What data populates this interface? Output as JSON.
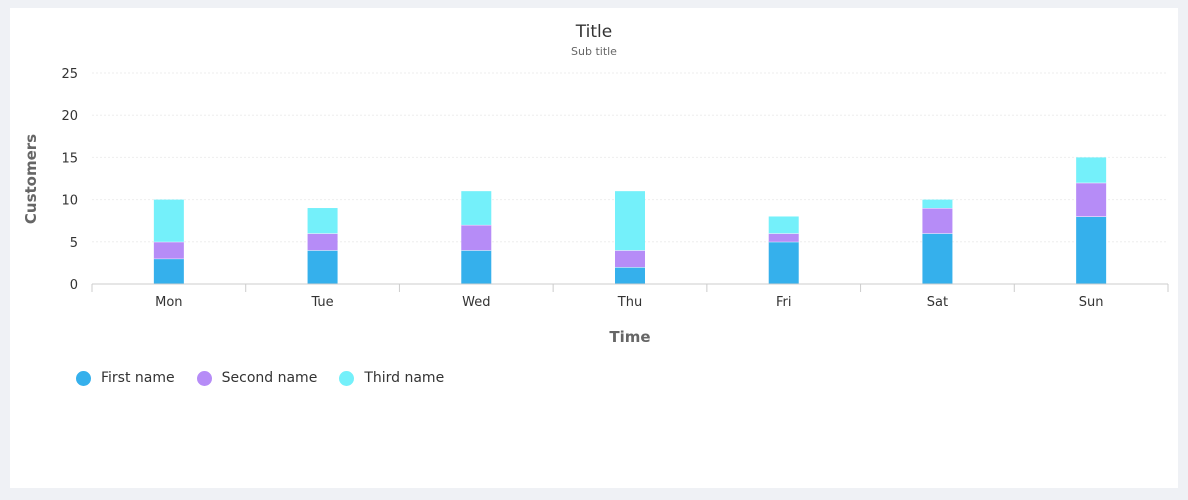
{
  "chart_data": {
    "type": "bar",
    "stacked": true,
    "title": "Title",
    "subtitle": "Sub title",
    "xlabel": "Time",
    "ylabel": "Customers",
    "categories": [
      "Mon",
      "Tue",
      "Wed",
      "Thu",
      "Fri",
      "Sat",
      "Sun"
    ],
    "ylim": [
      0,
      25
    ],
    "yticks": [
      0,
      5,
      10,
      15,
      20,
      25
    ],
    "grid": true,
    "legend_position": "bottom-left",
    "series": [
      {
        "name": "First name",
        "color": "#35b0ec",
        "values": [
          3,
          4,
          4,
          2,
          5,
          6,
          8
        ]
      },
      {
        "name": "Second name",
        "color": "#b68cf7",
        "values": [
          2,
          2,
          3,
          2,
          1,
          3,
          4
        ]
      },
      {
        "name": "Third name",
        "color": "#74f0fa",
        "values": [
          5,
          3,
          4,
          7,
          2,
          1,
          3
        ]
      }
    ]
  }
}
